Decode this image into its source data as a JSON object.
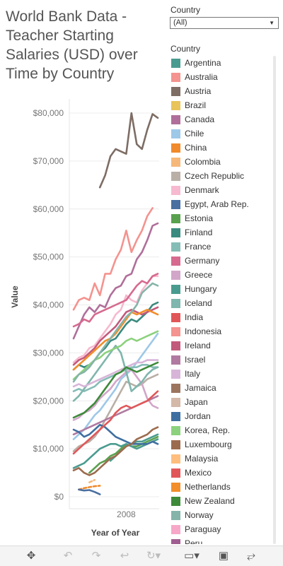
{
  "title": "World Bank Data - Teacher Starting Salaries (USD) over Time by Country",
  "filter": {
    "label": "Country",
    "selected": "(All)"
  },
  "legend_title": "Country",
  "chart_data": {
    "type": "line",
    "ylabel": "Value",
    "xlabel": "Year of Year",
    "x_tick": "2008",
    "y_ticks": [
      "$0",
      "$10,000",
      "$20,000",
      "$30,000",
      "$40,000",
      "$50,000",
      "$60,000",
      "$70,000",
      "$80,000"
    ],
    "ylim": [
      0,
      85000
    ],
    "x": [
      1998,
      1999,
      2000,
      2001,
      2002,
      2003,
      2004,
      2005,
      2006,
      2007,
      2008,
      2009,
      2010,
      2011,
      2012,
      2013,
      2014
    ],
    "series": [
      {
        "name": "Argentina",
        "color": "#4a9b8f",
        "values": [
          null,
          null,
          null,
          null,
          null,
          null,
          null,
          7500,
          8500,
          9500,
          10500,
          11000,
          11500,
          11500,
          12000,
          12500,
          13000
        ]
      },
      {
        "name": "Australia",
        "color": "#f4938f",
        "values": [
          39000,
          41000,
          41500,
          41000,
          44500,
          42000,
          46500,
          46500,
          49500,
          51500,
          55500,
          51000,
          53500,
          55500,
          58500,
          60200,
          null
        ]
      },
      {
        "name": "Austria",
        "color": "#7d6d65",
        "values": [
          null,
          null,
          null,
          null,
          null,
          64500,
          67000,
          71000,
          72500,
          72000,
          71500,
          80000,
          73500,
          72500,
          76500,
          79800,
          79000
        ]
      },
      {
        "name": "Brazil",
        "color": "#e8c45a",
        "values": [
          null,
          null,
          null,
          null,
          null,
          null,
          null,
          null,
          null,
          null,
          null,
          null,
          null,
          null,
          null,
          null,
          null
        ]
      },
      {
        "name": "Canada",
        "color": "#b06f9a",
        "values": [
          33000,
          35500,
          38000,
          39500,
          38500,
          40000,
          39500,
          42000,
          43500,
          44000,
          46000,
          46500,
          49500,
          51000,
          53500,
          56500,
          57000
        ]
      },
      {
        "name": "Chile",
        "color": "#9ec8e8",
        "values": [
          12000,
          13000,
          14000,
          15500,
          17000,
          18000,
          19500,
          21000,
          22500,
          24500,
          25500,
          26500,
          28000,
          29500,
          31000,
          32500,
          34000
        ]
      },
      {
        "name": "China",
        "color": "#f08a2c",
        "values": [
          null,
          1500,
          1800,
          2000,
          2200,
          2300,
          null,
          null,
          null,
          null,
          null,
          null,
          null,
          null,
          null,
          null,
          null
        ]
      },
      {
        "name": "Colombia",
        "color": "#f6b87a",
        "values": [
          null,
          null,
          null,
          3000,
          3500,
          null,
          null,
          null,
          null,
          null,
          null,
          null,
          null,
          null,
          null,
          null,
          null
        ]
      },
      {
        "name": "Czech Republic",
        "color": "#b9afa6",
        "values": [
          9500,
          10500,
          11000,
          11500,
          12500,
          14000,
          16000,
          18000,
          20000,
          22000,
          24000,
          23500,
          23000,
          23500,
          24500,
          25000,
          25500
        ]
      },
      {
        "name": "Denmark",
        "color": "#f7b9cf",
        "values": [
          28000,
          29000,
          29500,
          31000,
          31500,
          33000,
          34500,
          36000,
          38000,
          39000,
          42000,
          41000,
          40500,
          43000,
          44500,
          46000,
          46000
        ]
      },
      {
        "name": "Egypt, Arab Rep.",
        "color": "#4a6fa0",
        "values": [
          null,
          1500,
          1300,
          1400,
          1000,
          500,
          null,
          null,
          null,
          null,
          null,
          null,
          null,
          null,
          null,
          null,
          null
        ]
      },
      {
        "name": "Estonia",
        "color": "#59a14f",
        "values": [
          null,
          null,
          null,
          5000,
          6000,
          7000,
          7500,
          8500,
          9000,
          10000,
          11000,
          10500,
          10500,
          11000,
          11500,
          12000,
          12500
        ]
      },
      {
        "name": "Finland",
        "color": "#3a8a7f",
        "values": [
          26500,
          27500,
          27000,
          27500,
          28500,
          30000,
          31000,
          32500,
          33000,
          34500,
          36000,
          37000,
          36500,
          37500,
          38500,
          40000,
          40500
        ]
      },
      {
        "name": "France",
        "color": "#86bcb6",
        "values": [
          22000,
          22500,
          22000,
          22500,
          23000,
          24000,
          24500,
          25000,
          25500,
          26000,
          26500,
          27000,
          27000,
          27500,
          27500,
          27000,
          27000
        ]
      },
      {
        "name": "Germany",
        "color": "#d66a8f",
        "values": [
          35500,
          36000,
          37000,
          36500,
          38000,
          38500,
          39000,
          39500,
          40000,
          40500,
          41000,
          42500,
          44000,
          45000,
          44500,
          46000,
          46500
        ]
      },
      {
        "name": "Greece",
        "color": "#d2a6c9",
        "values": [
          16000,
          16500,
          17500,
          18000,
          19000,
          20500,
          21500,
          22500,
          24000,
          25000,
          26000,
          26500,
          25000,
          23500,
          20500,
          19000,
          18500
        ]
      },
      {
        "name": "Hungary",
        "color": "#4a9b8f",
        "values": [
          6000,
          6500,
          7000,
          8000,
          9000,
          10000,
          10500,
          11000,
          11000,
          10500,
          11000,
          10500,
          10000,
          10500,
          11000,
          11500,
          12000
        ]
      },
      {
        "name": "Iceland",
        "color": "#7fb6ad",
        "values": [
          20000,
          21000,
          22500,
          24000,
          25500,
          27000,
          28500,
          30000,
          31500,
          30000,
          26000,
          22000,
          23000,
          24000,
          25500,
          26500,
          27000
        ]
      },
      {
        "name": "India",
        "color": "#e15759",
        "values": [
          null,
          null,
          null,
          null,
          null,
          null,
          null,
          null,
          null,
          null,
          null,
          null,
          null,
          null,
          null,
          null,
          null
        ]
      },
      {
        "name": "Indonesia",
        "color": "#f4938f",
        "values": [
          null,
          null,
          null,
          null,
          null,
          null,
          null,
          null,
          null,
          null,
          null,
          null,
          null,
          null,
          null,
          null,
          null
        ]
      },
      {
        "name": "Ireland",
        "color": "#c25a7c",
        "values": [
          27500,
          28500,
          29000,
          30000,
          31000,
          32500,
          33500,
          34500,
          35500,
          37000,
          38500,
          39000,
          38500,
          38000,
          38500,
          39000,
          39500
        ]
      },
      {
        "name": "Israel",
        "color": "#b07aa1",
        "values": [
          13000,
          13500,
          14000,
          14500,
          15000,
          15500,
          16000,
          16500,
          17000,
          17500,
          18000,
          18500,
          19000,
          19500,
          20000,
          20500,
          21000
        ]
      },
      {
        "name": "Italy",
        "color": "#d7b5d8",
        "values": [
          23000,
          23500,
          23000,
          23500,
          24000,
          24500,
          25000,
          25500,
          26000,
          26500,
          27000,
          27500,
          28000,
          28000,
          28500,
          28500,
          28500
        ]
      },
      {
        "name": "Jamaica",
        "color": "#9c755f",
        "values": [
          null,
          null,
          null,
          null,
          null,
          null,
          null,
          null,
          null,
          null,
          null,
          null,
          null,
          null,
          null,
          null,
          null
        ]
      },
      {
        "name": "Japan",
        "color": "#d4b8a8",
        "values": [
          null,
          null,
          null,
          null,
          null,
          null,
          null,
          null,
          null,
          null,
          null,
          null,
          null,
          null,
          null,
          null,
          null
        ]
      },
      {
        "name": "Jordan",
        "color": "#3f6fa0",
        "values": [
          14000,
          13500,
          12500,
          13000,
          14000,
          15000,
          14500,
          13500,
          12500,
          12000,
          11500,
          11000,
          11000,
          11000,
          11000,
          11500,
          11000
        ]
      },
      {
        "name": "Korea, Rep.",
        "color": "#8cd17d",
        "values": [
          24500,
          25500,
          26500,
          27500,
          28500,
          29000,
          30000,
          30500,
          31000,
          31500,
          32500,
          33000,
          32500,
          33000,
          33500,
          34000,
          34500
        ]
      },
      {
        "name": "Luxembourg",
        "color": "#9c6b4e",
        "values": [
          5500,
          6000,
          5000,
          4500,
          5000,
          6000,
          7000,
          8000,
          8500,
          9500,
          10500,
          11000,
          12000,
          12500,
          13000,
          14000,
          14500
        ]
      },
      {
        "name": "Malaysia",
        "color": "#ffbe7d",
        "values": [
          null,
          null,
          null,
          null,
          null,
          null,
          null,
          null,
          null,
          null,
          null,
          null,
          null,
          null,
          null,
          null,
          null
        ]
      },
      {
        "name": "Mexico",
        "color": "#e15759",
        "values": [
          9000,
          10000,
          11000,
          12000,
          13000,
          14000,
          15000,
          16000,
          17500,
          18500,
          19000,
          18500,
          19000,
          19500,
          20000,
          21000,
          22000
        ]
      },
      {
        "name": "Netherlands",
        "color": "#f28e2b",
        "values": [
          26500,
          27500,
          28500,
          29500,
          30500,
          31500,
          32500,
          33000,
          34000,
          35500,
          37000,
          38500,
          38000,
          38500,
          39000,
          38500,
          38000
        ]
      },
      {
        "name": "New Zealand",
        "color": "#3e8a3a",
        "values": [
          16500,
          17000,
          17500,
          18500,
          19500,
          21000,
          22500,
          24000,
          25500,
          26000,
          27000,
          26500,
          26000,
          26500,
          27000,
          27500,
          28000
        ]
      },
      {
        "name": "Norway",
        "color": "#86b4a9",
        "values": [
          24000,
          25500,
          26000,
          27000,
          28500,
          30000,
          31500,
          33000,
          34500,
          36000,
          37500,
          38500,
          40000,
          42500,
          43500,
          44500,
          44000
        ]
      },
      {
        "name": "Paraguay",
        "color": "#f7a8c8",
        "values": [
          null,
          null,
          null,
          null,
          null,
          null,
          null,
          null,
          null,
          null,
          null,
          null,
          null,
          null,
          null,
          null,
          null
        ]
      },
      {
        "name": "Peru",
        "color": "#a05d8f",
        "values": [
          null,
          null,
          null,
          null,
          null,
          null,
          null,
          null,
          null,
          null,
          null,
          null,
          null,
          null,
          null,
          null,
          null
        ]
      }
    ]
  },
  "toolbar": {
    "icons": [
      "move-icon",
      "undo-icon",
      "redo-icon",
      "revert-icon",
      "refresh-icon",
      "download-icon",
      "fullscreen-icon",
      "share-icon"
    ]
  }
}
